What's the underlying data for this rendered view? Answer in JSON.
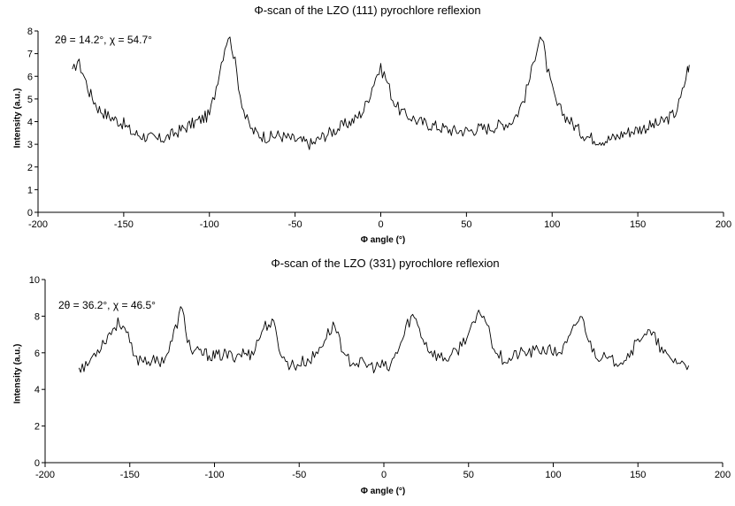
{
  "chart_data": [
    {
      "type": "line",
      "title": "Φ-scan of the LZO (111) pyrochlore reflexion",
      "xlabel": "Φ angle (°)",
      "ylabel": "Intensity (a.u.)",
      "annotation": "2θ = 14.2°, χ = 54.7°",
      "xlim": [
        -200,
        200
      ],
      "ylim": [
        0,
        8
      ],
      "xticks": [
        -200,
        -150,
        -100,
        -50,
        0,
        50,
        100,
        150,
        200
      ],
      "yticks": [
        0,
        1,
        2,
        3,
        4,
        5,
        6,
        7,
        8
      ],
      "grid": false,
      "series": [
        {
          "x": [
            -180,
            -177,
            -174,
            -170,
            -165,
            -160,
            -155,
            -150,
            -145,
            -140,
            -135,
            -130,
            -125,
            -120,
            -115,
            -110,
            -105,
            -100,
            -97,
            -94,
            -91,
            -89,
            -87,
            -85,
            -82,
            -79,
            -75,
            -70,
            -65,
            -60,
            -55,
            -50,
            -45,
            -40,
            -35,
            -30,
            -25,
            -20,
            -15,
            -10,
            -6,
            -3,
            0,
            2,
            4,
            7,
            10,
            14,
            18,
            22,
            27,
            32,
            37,
            42,
            47,
            52,
            57,
            62,
            67,
            72,
            76,
            80,
            84,
            88,
            91,
            93,
            95,
            97,
            100,
            103,
            107,
            112,
            117,
            122,
            127,
            132,
            137,
            142,
            147,
            152,
            157,
            162,
            167,
            172,
            175,
            177,
            179,
            180
          ],
          "y": [
            6.1,
            6.7,
            6.2,
            5.3,
            4.6,
            4.3,
            4.1,
            3.9,
            3.5,
            3.4,
            3.3,
            3.2,
            3.3,
            3.5,
            3.7,
            3.9,
            4.1,
            4.3,
            5.2,
            6.3,
            7.3,
            7.8,
            7.4,
            6.6,
            5.2,
            4.2,
            3.6,
            3.4,
            3.3,
            3.4,
            3.3,
            3.2,
            3.1,
            3.0,
            3.3,
            3.5,
            3.7,
            3.9,
            4.1,
            4.5,
            5.3,
            6.0,
            6.3,
            6.1,
            5.7,
            5.0,
            4.6,
            4.3,
            4.2,
            4.0,
            3.9,
            3.8,
            3.7,
            3.6,
            3.6,
            3.6,
            3.7,
            3.7,
            3.8,
            3.9,
            4.0,
            4.4,
            5.1,
            6.2,
            7.3,
            7.8,
            7.3,
            6.4,
            5.4,
            4.7,
            4.3,
            3.9,
            3.5,
            3.3,
            3.2,
            3.2,
            3.3,
            3.5,
            3.6,
            3.7,
            3.8,
            3.9,
            4.1,
            4.4,
            5.0,
            5.6,
            6.3,
            6.5
          ]
        }
      ]
    },
    {
      "type": "line",
      "title": "Φ-scan of the LZO (331)  pyrochlore reflexion",
      "xlabel": "Φ angle (°)",
      "ylabel": "Intensity (a.u.)",
      "annotation": "2θ = 36.2°, χ = 46.5°",
      "xlim": [
        -200,
        200
      ],
      "ylim": [
        0,
        10
      ],
      "xticks": [
        -200,
        -150,
        -100,
        -50,
        0,
        50,
        100,
        150,
        200
      ],
      "yticks": [
        0,
        2,
        4,
        6,
        8,
        10
      ],
      "grid": false,
      "series": [
        {
          "x": [
            -180,
            -176,
            -172,
            -168,
            -164,
            -160,
            -157,
            -154,
            -151,
            -147,
            -143,
            -139,
            -135,
            -131,
            -127,
            -123,
            -120,
            -118,
            -116,
            -113,
            -109,
            -104,
            -99,
            -94,
            -89,
            -84,
            -79,
            -75,
            -71,
            -68,
            -65,
            -62,
            -59,
            -56,
            -52,
            -48,
            -44,
            -40,
            -36,
            -32,
            -29,
            -26,
            -23,
            -20,
            -17,
            -13,
            -9,
            -5,
            -1,
            3,
            7,
            11,
            14,
            17,
            20,
            23,
            26,
            29,
            32,
            36,
            40,
            44,
            48,
            52,
            55,
            58,
            61,
            64,
            67,
            70,
            74,
            78,
            82,
            86,
            90,
            94,
            98,
            102,
            106,
            110,
            113,
            116,
            119,
            122,
            126,
            130,
            134,
            138,
            142,
            146,
            150,
            153,
            156,
            160,
            164,
            168,
            172,
            176,
            180
          ],
          "y": [
            5.3,
            5.2,
            5.8,
            6.3,
            6.8,
            7.3,
            7.6,
            7.6,
            6.8,
            5.6,
            5.7,
            5.6,
            5.5,
            5.6,
            6.1,
            7.3,
            8.3,
            8.0,
            6.8,
            6.0,
            6.0,
            5.9,
            5.8,
            5.9,
            5.8,
            6.0,
            5.9,
            6.5,
            7.4,
            7.6,
            7.5,
            6.4,
            5.6,
            5.4,
            5.3,
            5.5,
            5.6,
            5.9,
            6.6,
            7.2,
            7.5,
            6.8,
            5.6,
            5.6,
            5.5,
            5.4,
            5.3,
            5.2,
            5.3,
            5.1,
            5.9,
            6.7,
            7.6,
            8.0,
            7.6,
            6.8,
            6.3,
            6.0,
            5.8,
            5.7,
            5.8,
            6.2,
            6.8,
            7.3,
            7.9,
            8.2,
            7.6,
            6.6,
            6.0,
            5.7,
            5.6,
            5.9,
            6.0,
            6.0,
            6.1,
            6.2,
            6.1,
            6.0,
            6.2,
            6.8,
            7.5,
            8.0,
            7.4,
            6.4,
            5.9,
            5.7,
            5.5,
            5.6,
            5.7,
            6.1,
            6.6,
            7.1,
            7.1,
            6.8,
            6.1,
            5.7,
            5.6,
            5.4,
            5.3
          ]
        }
      ]
    }
  ]
}
